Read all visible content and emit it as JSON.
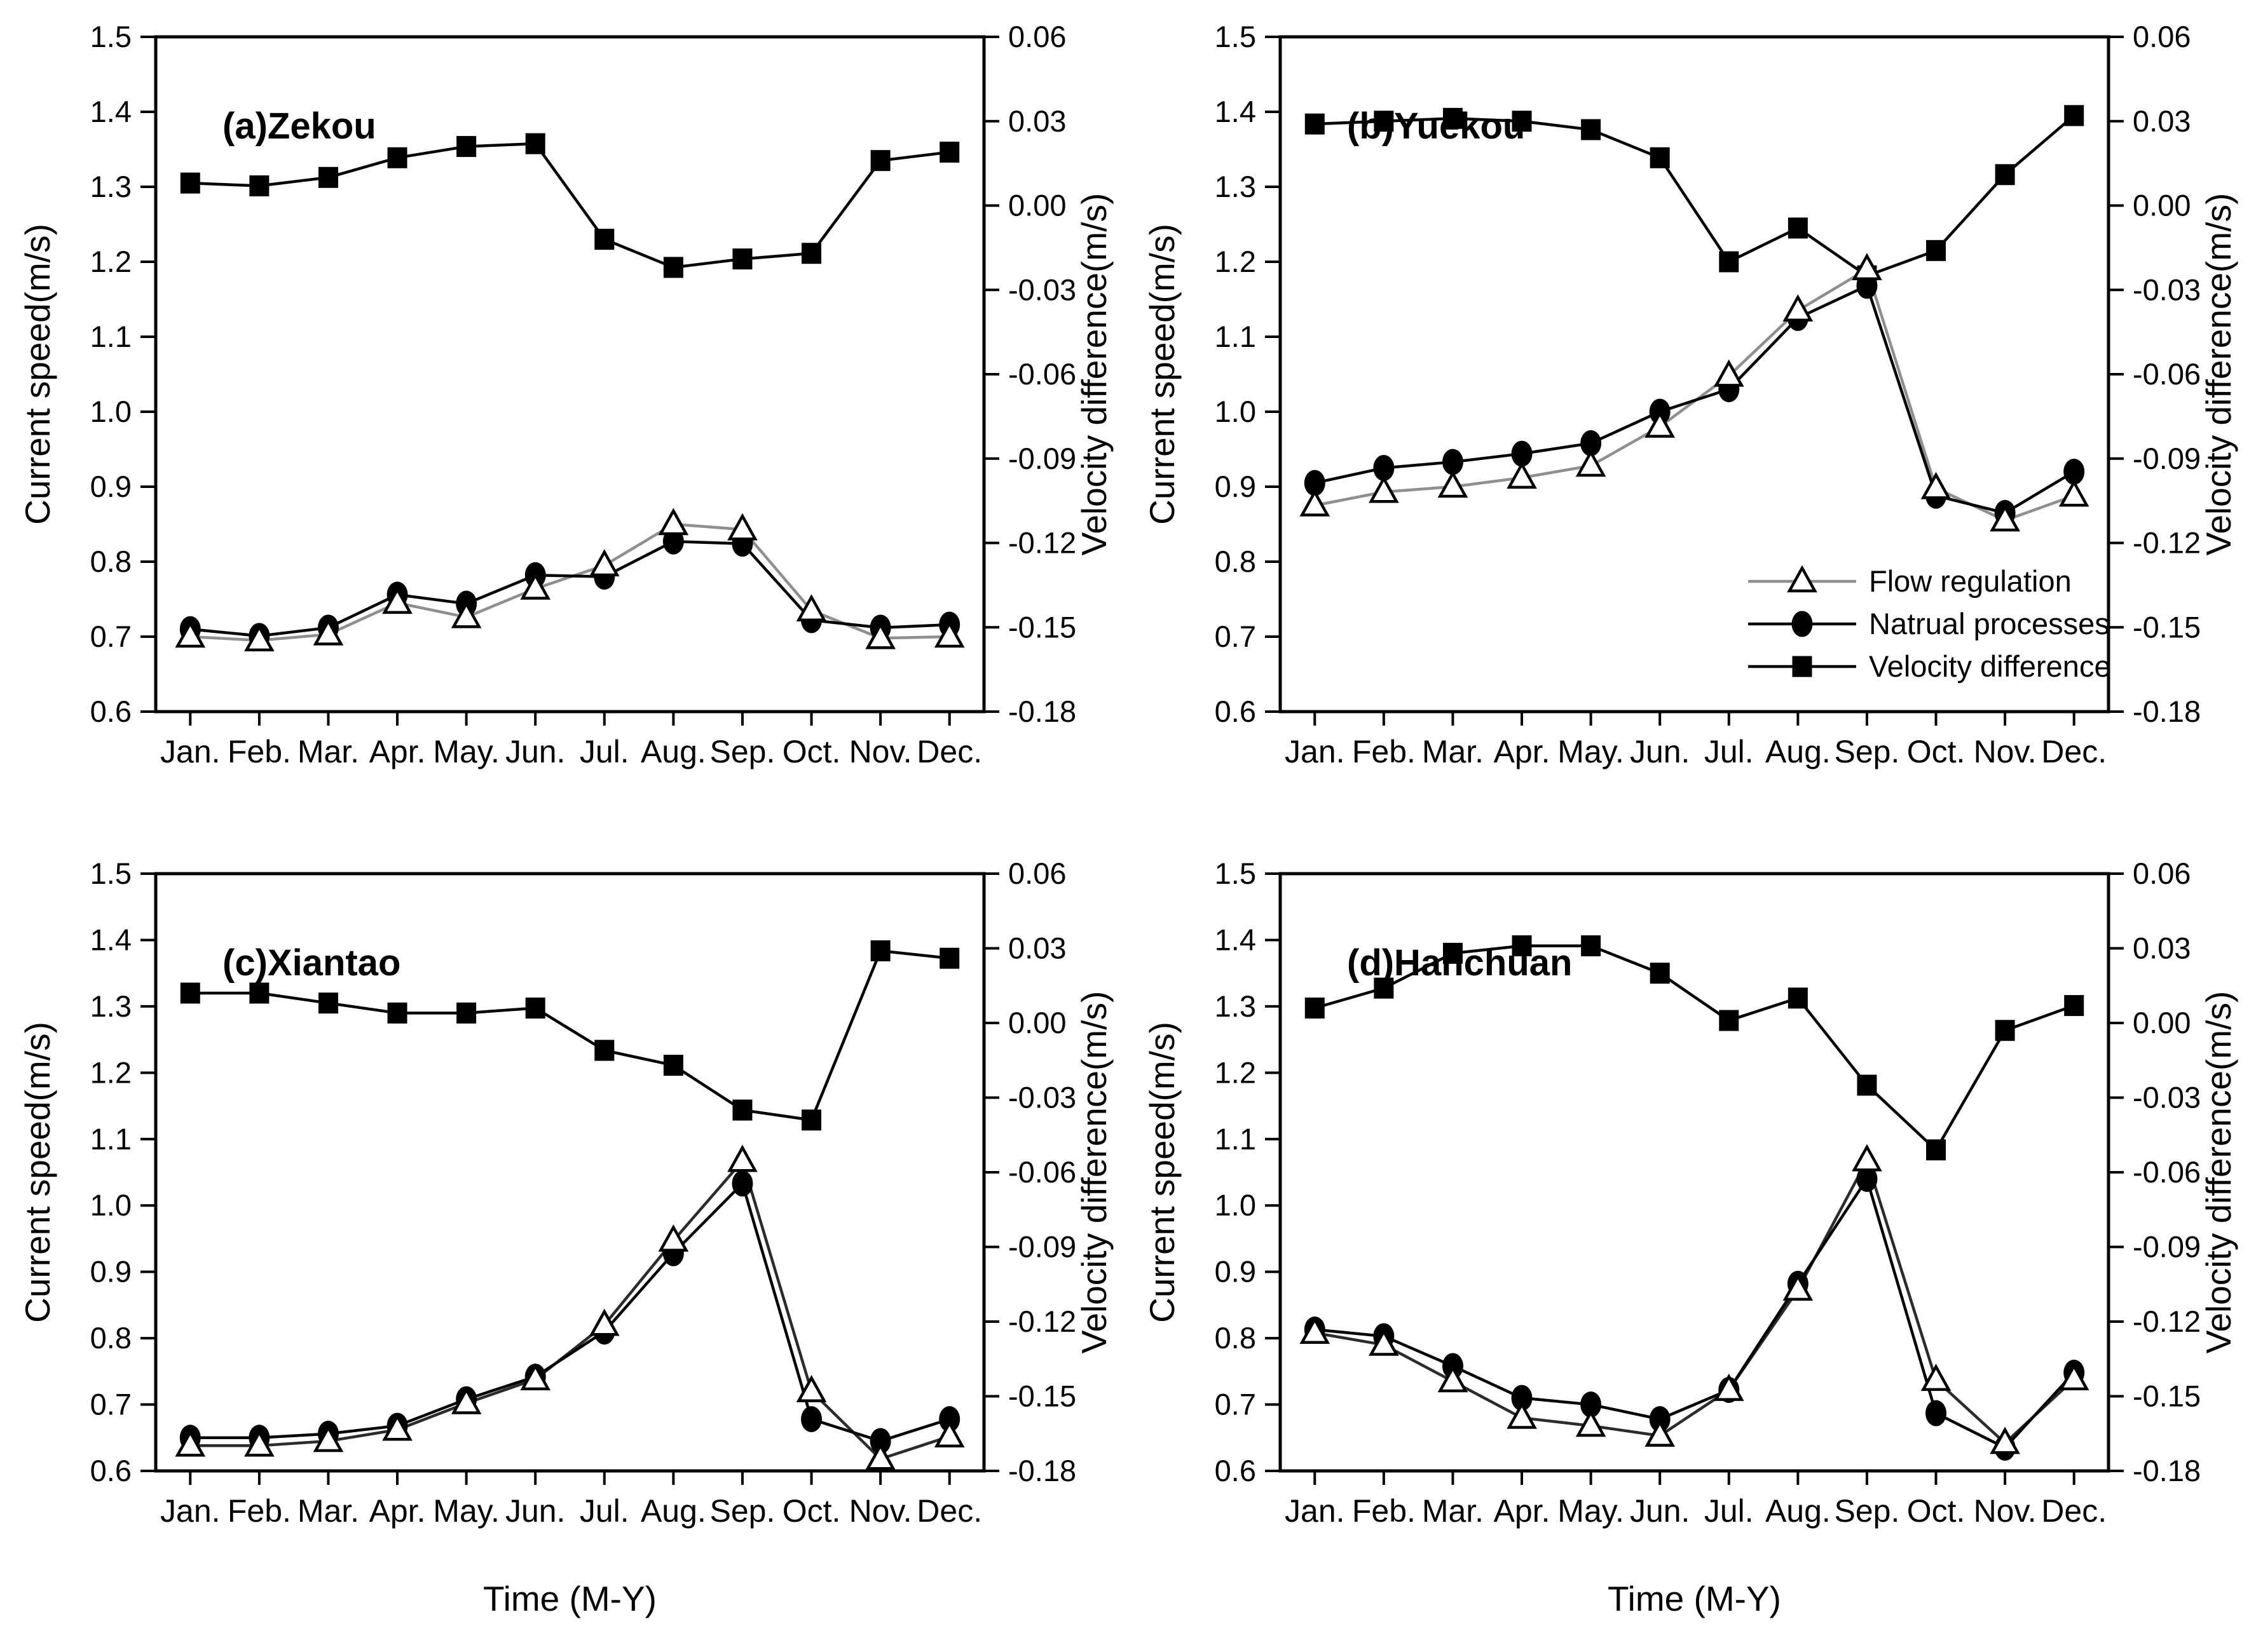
{
  "figure": {
    "background": "#ffffff",
    "axis_color": "#000000",
    "flow_line_color_top_row": "#8f8f8f",
    "flow_line_color_bottom_row": "#2b2b2b",
    "legend_panel": "b",
    "legend_entries": [
      "Flow regulation",
      "Natrual processes",
      "Velocity difference"
    ]
  },
  "chart_data": [
    {
      "id": "a",
      "type": "line",
      "title": "(a)Zekou",
      "categories": [
        "Jan.",
        "Feb.",
        "Mar.",
        "Apr.",
        "May.",
        "Jun.",
        "Jul.",
        "Aug.",
        "Sep.",
        "Oct.",
        "Nov.",
        "Dec."
      ],
      "xlabel": "",
      "left_axis": {
        "label": "Current speed(m/s)",
        "min": 0.6,
        "max": 1.5,
        "tick_step": 0.1,
        "ticks": [
          "1.5",
          "1.4",
          "1.3",
          "1.2",
          "1.1",
          "1.0",
          "0.9",
          "0.8",
          "0.7",
          "0.6"
        ]
      },
      "right_axis": {
        "label": "Velocity difference(m/s)",
        "min": -0.18,
        "max": 0.06,
        "tick_step": 0.03,
        "ticks": [
          "0.06",
          "0.03",
          "0.00",
          "-0.03",
          "-0.06",
          "-0.09",
          "-0.12",
          "-0.15",
          "-0.18"
        ]
      },
      "series": [
        {
          "name": "Flow regulation",
          "axis": "left",
          "marker": "triangle-open",
          "line_color": "#8f8f8f",
          "values": [
            0.7,
            0.695,
            0.703,
            0.745,
            0.726,
            0.764,
            0.795,
            0.85,
            0.843,
            0.735,
            0.698,
            0.7
          ]
        },
        {
          "name": "Natrual processes",
          "axis": "left",
          "marker": "circle-filled",
          "line_color": "#000000",
          "values": [
            0.71,
            0.701,
            0.712,
            0.756,
            0.744,
            0.782,
            0.78,
            0.827,
            0.824,
            0.722,
            0.712,
            0.716
          ]
        },
        {
          "name": "Velocity difference",
          "axis": "right",
          "marker": "square-filled",
          "line_color": "#000000",
          "values": [
            0.008,
            0.007,
            0.01,
            0.017,
            0.021,
            0.022,
            -0.012,
            -0.022,
            -0.019,
            -0.017,
            0.016,
            0.019
          ]
        }
      ],
      "legend": false
    },
    {
      "id": "b",
      "type": "line",
      "title": "(b)Yuekou",
      "categories": [
        "Jan.",
        "Feb.",
        "Mar.",
        "Apr.",
        "May.",
        "Jun.",
        "Jul.",
        "Aug.",
        "Sep.",
        "Oct.",
        "Nov.",
        "Dec."
      ],
      "xlabel": "",
      "left_axis": {
        "label": "Current speed(m/s)",
        "min": 0.6,
        "max": 1.5,
        "tick_step": 0.1,
        "ticks": [
          "1.5",
          "1.4",
          "1.3",
          "1.2",
          "1.1",
          "1.0",
          "0.9",
          "0.8",
          "0.7",
          "0.6"
        ]
      },
      "right_axis": {
        "label": "Velocity difference(m/s)",
        "min": -0.18,
        "max": 0.06,
        "tick_step": 0.03,
        "ticks": [
          "0.06",
          "0.03",
          "0.00",
          "-0.03",
          "-0.06",
          "-0.09",
          "-0.12",
          "-0.15",
          "-0.18"
        ]
      },
      "series": [
        {
          "name": "Flow regulation",
          "axis": "left",
          "marker": "triangle-open",
          "line_color": "#8f8f8f",
          "values": [
            0.875,
            0.893,
            0.9,
            0.912,
            0.928,
            0.98,
            1.048,
            1.135,
            1.19,
            0.898,
            0.855,
            0.888
          ]
        },
        {
          "name": "Natrual processes",
          "axis": "left",
          "marker": "circle-filled",
          "line_color": "#000000",
          "values": [
            0.905,
            0.925,
            0.933,
            0.944,
            0.958,
            1.0,
            1.03,
            1.125,
            1.168,
            0.888,
            0.865,
            0.92
          ]
        },
        {
          "name": "Velocity difference",
          "axis": "right",
          "marker": "square-filled",
          "line_color": "#000000",
          "values": [
            0.029,
            0.03,
            0.031,
            0.03,
            0.027,
            0.017,
            -0.02,
            -0.008,
            -0.025,
            -0.016,
            0.011,
            0.032
          ]
        }
      ],
      "legend": true
    },
    {
      "id": "c",
      "type": "line",
      "title": "(c)Xiantao",
      "categories": [
        "Jan.",
        "Feb.",
        "Mar.",
        "Apr.",
        "May.",
        "Jun.",
        "Jul.",
        "Aug.",
        "Sep.",
        "Oct.",
        "Nov.",
        "Dec."
      ],
      "xlabel": "Time (M-Y)",
      "left_axis": {
        "label": "Current speed(m/s)",
        "min": 0.6,
        "max": 1.5,
        "tick_step": 0.1,
        "ticks": [
          "1.5",
          "1.4",
          "1.3",
          "1.2",
          "1.1",
          "1.0",
          "0.9",
          "0.8",
          "0.7",
          "0.6"
        ]
      },
      "right_axis": {
        "label": "Velocity difference(m/s)",
        "min": -0.18,
        "max": 0.06,
        "tick_step": 0.03,
        "ticks": [
          "0.06",
          "0.03",
          "0.00",
          "-0.03",
          "-0.06",
          "-0.09",
          "-0.12",
          "-0.15",
          "-0.18"
        ]
      },
      "series": [
        {
          "name": "Flow regulation",
          "axis": "left",
          "marker": "triangle-open",
          "line_color": "#2b2b2b",
          "values": [
            0.638,
            0.638,
            0.645,
            0.662,
            0.702,
            0.738,
            0.82,
            0.947,
            1.067,
            0.72,
            0.618,
            0.652
          ]
        },
        {
          "name": "Natrual processes",
          "axis": "left",
          "marker": "circle-filled",
          "line_color": "#000000",
          "values": [
            0.65,
            0.65,
            0.656,
            0.668,
            0.708,
            0.742,
            0.81,
            0.928,
            1.033,
            0.678,
            0.645,
            0.678
          ]
        },
        {
          "name": "Velocity difference",
          "axis": "right",
          "marker": "square-filled",
          "line_color": "#000000",
          "values": [
            0.012,
            0.012,
            0.008,
            0.004,
            0.004,
            0.006,
            -0.011,
            -0.017,
            -0.035,
            -0.039,
            0.029,
            0.026
          ]
        }
      ],
      "legend": false
    },
    {
      "id": "d",
      "type": "line",
      "title": "(d)Hanchuan",
      "categories": [
        "Jan.",
        "Feb.",
        "Mar.",
        "Apr.",
        "May.",
        "Jun.",
        "Jul.",
        "Aug.",
        "Sep.",
        "Oct.",
        "Nov.",
        "Dec."
      ],
      "xlabel": "Time (M-Y)",
      "left_axis": {
        "label": "Current speed(m/s)",
        "min": 0.6,
        "max": 1.5,
        "tick_step": 0.1,
        "ticks": [
          "1.5",
          "1.4",
          "1.3",
          "1.2",
          "1.1",
          "1.0",
          "0.9",
          "0.8",
          "0.7",
          "0.6"
        ]
      },
      "right_axis": {
        "label": "Velocity difference(m/s)",
        "min": -0.18,
        "max": 0.06,
        "tick_step": 0.03,
        "ticks": [
          "0.06",
          "0.03",
          "0.00",
          "-0.03",
          "-0.06",
          "-0.09",
          "-0.12",
          "-0.15",
          "-0.18"
        ]
      },
      "series": [
        {
          "name": "Flow regulation",
          "axis": "left",
          "marker": "triangle-open",
          "line_color": "#2b2b2b",
          "values": [
            0.808,
            0.79,
            0.735,
            0.68,
            0.668,
            0.653,
            0.722,
            0.873,
            1.068,
            0.737,
            0.642,
            0.738
          ]
        },
        {
          "name": "Natrual processes",
          "axis": "left",
          "marker": "circle-filled",
          "line_color": "#000000",
          "values": [
            0.813,
            0.803,
            0.758,
            0.71,
            0.7,
            0.678,
            0.722,
            0.882,
            1.04,
            0.687,
            0.635,
            0.748
          ]
        },
        {
          "name": "Velocity difference",
          "axis": "right",
          "marker": "square-filled",
          "line_color": "#000000",
          "values": [
            0.006,
            0.014,
            0.028,
            0.031,
            0.031,
            0.02,
            0.001,
            0.01,
            -0.025,
            -0.051,
            -0.003,
            0.007
          ]
        }
      ],
      "legend": false
    }
  ]
}
